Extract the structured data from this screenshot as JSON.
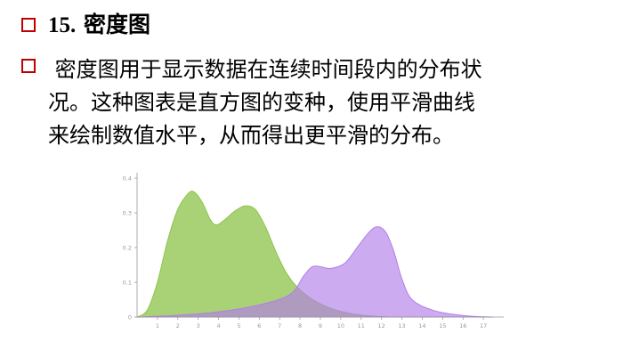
{
  "heading": {
    "number": "15.",
    "title": "密度图"
  },
  "description": {
    "lines": [
      " 密度图用于显示数据在连续时间段内的分布状",
      "况。这种图表是直方图的变种，使用平滑曲线",
      "来绘制数值水平，从而得出更平滑的分布。"
    ]
  },
  "colors": {
    "checkbox": "#c00000",
    "series_green": "#8cc34a",
    "series_purple": "#b27ee8",
    "axis": "#999999"
  },
  "chart_data": {
    "type": "area",
    "title": "",
    "xlabel": "",
    "ylabel": "",
    "xlim": [
      0,
      18
    ],
    "ylim": [
      0,
      0.4
    ],
    "x_ticks": [
      "1",
      "2",
      "3",
      "4",
      "5",
      "6",
      "7",
      "8",
      "9",
      "10",
      "11",
      "12",
      "13",
      "14",
      "15",
      "16",
      "17"
    ],
    "y_ticks": [
      "0",
      "0.1",
      "0.2",
      "0.3",
      "0.4"
    ],
    "grid": false,
    "series": [
      {
        "color": "#8cc34a",
        "points": [
          [
            0,
            0.0
          ],
          [
            0.5,
            0.02
          ],
          [
            1,
            0.1
          ],
          [
            1.5,
            0.22
          ],
          [
            2,
            0.31
          ],
          [
            2.5,
            0.355
          ],
          [
            2.8,
            0.36
          ],
          [
            3.2,
            0.33
          ],
          [
            3.6,
            0.28
          ],
          [
            3.9,
            0.265
          ],
          [
            4.3,
            0.28
          ],
          [
            4.8,
            0.305
          ],
          [
            5.3,
            0.32
          ],
          [
            5.8,
            0.31
          ],
          [
            6.3,
            0.26
          ],
          [
            6.8,
            0.19
          ],
          [
            7.3,
            0.13
          ],
          [
            7.8,
            0.09
          ],
          [
            8.5,
            0.055
          ],
          [
            9.5,
            0.025
          ],
          [
            10.5,
            0.01
          ],
          [
            11.5,
            0.003
          ],
          [
            12.5,
            0.0
          ]
        ]
      },
      {
        "color": "#b27ee8",
        "points": [
          [
            0,
            0.0
          ],
          [
            2,
            0.005
          ],
          [
            4,
            0.015
          ],
          [
            6,
            0.035
          ],
          [
            7.5,
            0.065
          ],
          [
            8.2,
            0.12
          ],
          [
            8.6,
            0.145
          ],
          [
            9,
            0.145
          ],
          [
            9.5,
            0.14
          ],
          [
            10.2,
            0.155
          ],
          [
            10.8,
            0.2
          ],
          [
            11.4,
            0.245
          ],
          [
            11.8,
            0.26
          ],
          [
            12.2,
            0.245
          ],
          [
            12.6,
            0.19
          ],
          [
            13,
            0.11
          ],
          [
            13.5,
            0.05
          ],
          [
            14.5,
            0.02
          ],
          [
            15.5,
            0.008
          ],
          [
            16.5,
            0.002
          ],
          [
            17.5,
            0.0
          ]
        ]
      }
    ]
  }
}
